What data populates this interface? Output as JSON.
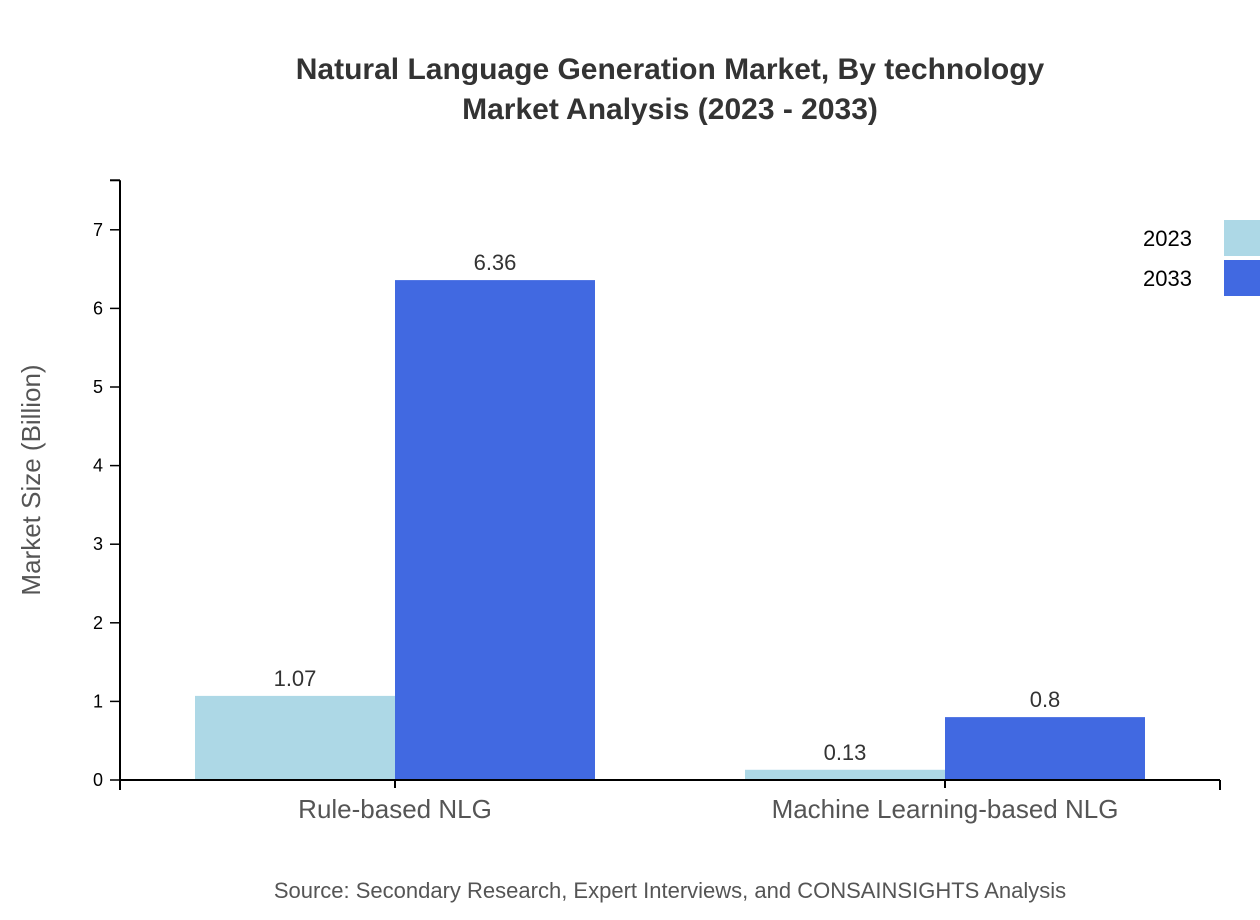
{
  "chart_data": {
    "type": "bar",
    "title": "Natural Language Generation Market, By technology",
    "subtitle": "Market Analysis (2023 - 2033)",
    "xlabel": "",
    "ylabel": "Market Size (Billion)",
    "categories": [
      "Rule-based NLG",
      "Machine Learning-based NLG"
    ],
    "series": [
      {
        "name": "2023",
        "color": "#add8e6",
        "values": [
          1.07,
          0.13
        ]
      },
      {
        "name": "2033",
        "color": "#4169e1",
        "values": [
          6.36,
          0.8
        ]
      }
    ],
    "yticks": [
      0,
      1,
      2,
      3,
      4,
      5,
      6,
      7
    ],
    "ylim": [
      0,
      7.63
    ],
    "grid": false,
    "legend_position": "top-right"
  },
  "source": "Source: Secondary Research, Expert Interviews, and CONSAINSIGHTS Analysis"
}
